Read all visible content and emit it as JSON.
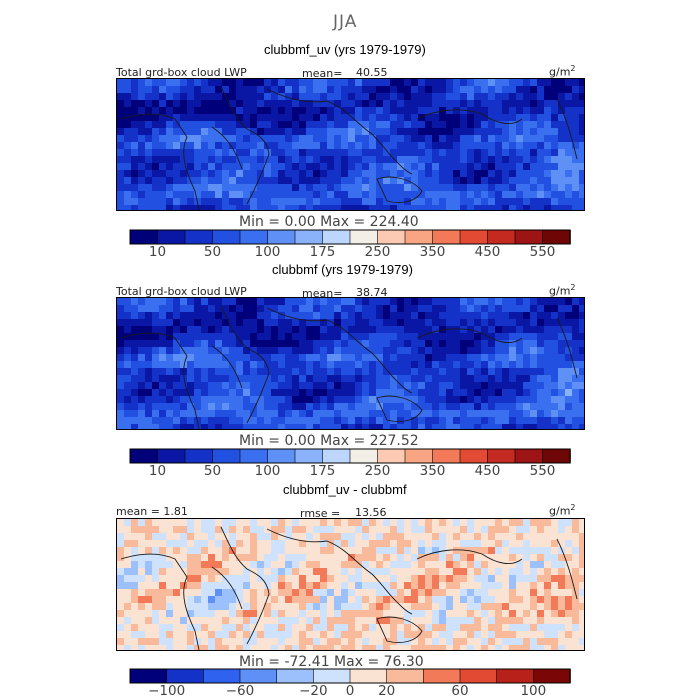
{
  "season": "JJA",
  "units_label": "g/m",
  "units_exp": "2",
  "panels": [
    {
      "title": "clubbmf_uv (yrs 1979-1979)",
      "left_label": "Total grd-box cloud LWP",
      "stat1_label": "mean=",
      "stat1_value": "40.55",
      "minmax": "Min =    0.00 Max = 224.40",
      "mean": 40.55,
      "min": 0.0,
      "max": 224.4,
      "kind": "abs"
    },
    {
      "title": "clubbmf (yrs 1979-1979)",
      "left_label": "Total grd-box cloud LWP",
      "stat1_label": "mean=",
      "stat1_value": "38.74",
      "minmax": "Min =    0.00 Max = 227.52",
      "mean": 38.74,
      "min": 0.0,
      "max": 227.52,
      "kind": "abs"
    },
    {
      "title": "clubbmf_uv - clubbmf",
      "left_label": "mean =   1.81",
      "stat1_label": "rmse =",
      "stat1_value": "13.56",
      "minmax": "Min = -72.41 Max =  76.30",
      "mean": 1.81,
      "rmse": 13.56,
      "min": -72.41,
      "max": 76.3,
      "kind": "diff"
    }
  ],
  "chart_data": [
    {
      "type": "heatmap",
      "title": "clubbmf_uv (yrs 1979-1979)",
      "variable": "Total grd-box cloud LWP",
      "units": "g/m2",
      "mean": 40.55,
      "min": 0.0,
      "max": 224.4,
      "colorbar_levels": [
        10,
        25,
        50,
        75,
        100,
        150,
        175,
        200,
        250,
        300,
        350,
        400,
        450,
        500,
        550
      ],
      "colorbar_tick_labels": [
        "10",
        "50",
        "100",
        "175",
        "250",
        "350",
        "450",
        "550"
      ]
    },
    {
      "type": "heatmap",
      "title": "clubbmf (yrs 1979-1979)",
      "variable": "Total grd-box cloud LWP",
      "units": "g/m2",
      "mean": 38.74,
      "min": 0.0,
      "max": 227.52,
      "colorbar_levels": [
        10,
        25,
        50,
        75,
        100,
        150,
        175,
        200,
        250,
        300,
        350,
        400,
        450,
        500,
        550
      ],
      "colorbar_tick_labels": [
        "10",
        "50",
        "100",
        "175",
        "250",
        "350",
        "450",
        "550"
      ]
    },
    {
      "type": "heatmap",
      "title": "clubbmf_uv - clubbmf",
      "units": "g/m2",
      "mean": 1.81,
      "rmse": 13.56,
      "min": -72.41,
      "max": 76.3,
      "colorbar_levels": [
        -100,
        -80,
        -60,
        -40,
        -20,
        -10,
        0,
        10,
        20,
        40,
        60,
        80,
        100
      ],
      "colorbar_tick_labels": [
        "-100",
        "-60",
        "-20",
        "0",
        "20",
        "60",
        "100"
      ]
    }
  ],
  "colormaps": {
    "abs": [
      "#00007a",
      "#0a16a4",
      "#1432c8",
      "#2250e0",
      "#3a6ff0",
      "#5f90f6",
      "#8ab2fb",
      "#bcd6fe",
      "#f3eee6",
      "#fccab2",
      "#f9a584",
      "#f27a58",
      "#e24a33",
      "#c42a20",
      "#9c1414",
      "#6e0606"
    ],
    "diff": [
      "#00007a",
      "#1432c8",
      "#2f62ee",
      "#5f90f6",
      "#9cc0fc",
      "#cfe2fd",
      "#fbe3d4",
      "#f9b99b",
      "#f27a58",
      "#e24a33",
      "#b8201a",
      "#7a0606"
    ]
  },
  "colorbars": [
    {
      "ticks": [
        "10",
        "50",
        "100",
        "175",
        "250",
        "350",
        "450",
        "550"
      ]
    },
    {
      "ticks": [
        "10",
        "50",
        "100",
        "175",
        "250",
        "350",
        "450",
        "550"
      ]
    },
    {
      "ticks": [
        "−100",
        "−60",
        "−20",
        "0",
        "20",
        "60",
        "100"
      ]
    }
  ]
}
